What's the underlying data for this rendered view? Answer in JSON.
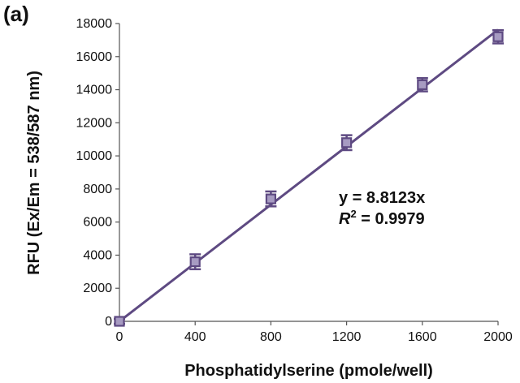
{
  "panel_label": "(a)",
  "chart_data": {
    "type": "scatter",
    "xlabel": "Phosphatidylserine (pmole/well)",
    "ylabel": "RFU (Ex/Em = 538/587 nm)",
    "xlim": [
      0,
      2000
    ],
    "ylim": [
      0,
      18000
    ],
    "x_ticks": [
      0,
      400,
      800,
      1200,
      1600,
      2000
    ],
    "y_ticks": [
      0,
      2000,
      4000,
      6000,
      8000,
      10000,
      12000,
      14000,
      16000,
      18000
    ],
    "grid": false,
    "series": [
      {
        "x": [
          0,
          400,
          800,
          1200,
          1600,
          2000
        ],
        "y": [
          0,
          3600,
          7400,
          10800,
          14300,
          17200
        ],
        "error": [
          150,
          450,
          450,
          450,
          400,
          400
        ],
        "marker": "square",
        "color": "#5e4a82"
      }
    ],
    "trendline": {
      "slope": 8.8123,
      "intercept": 0,
      "x_range": [
        0,
        2000
      ],
      "color": "#5e4a82"
    },
    "annotations": {
      "equation": "y = 8.8123x",
      "r2_symbol": "R",
      "r2_sup": "2",
      "r2_value": " = 0.9979"
    }
  }
}
